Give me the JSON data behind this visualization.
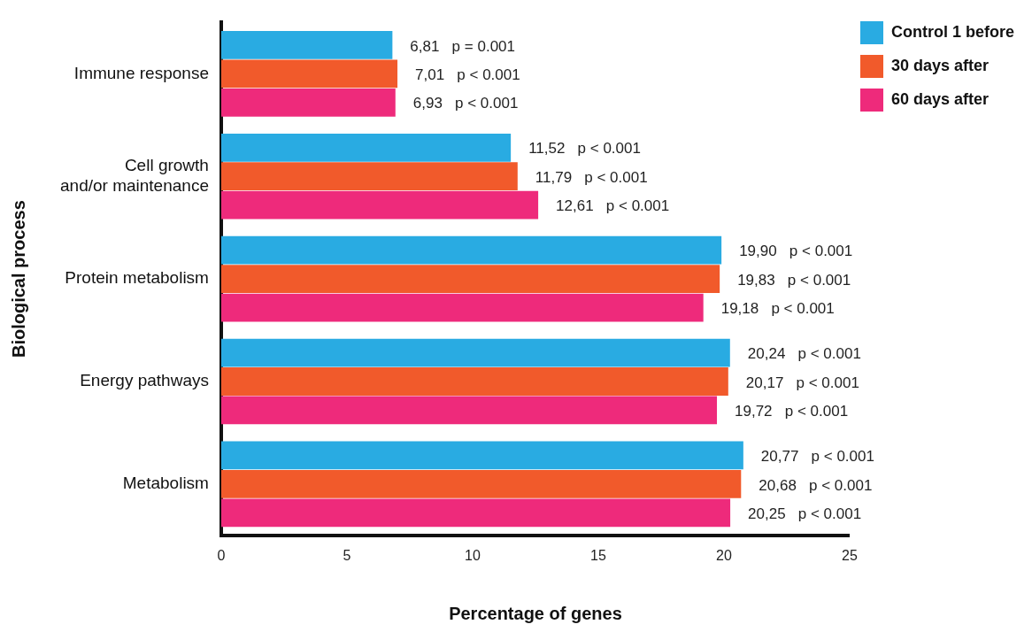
{
  "chart_data": {
    "type": "bar",
    "orientation": "horizontal",
    "xlabel": "Percentage of genes",
    "ylabel": "Biological process",
    "categories": [
      "Immune response",
      "Cell growth\nand/or maintenance",
      "Protein metabolism",
      "Energy pathways",
      "Metabolism"
    ],
    "series": [
      {
        "name": "Control 1 before",
        "color": "#29abe2",
        "values": [
          6.81,
          11.52,
          19.9,
          20.24,
          20.77
        ],
        "value_labels": [
          "6,81   p = 0.001",
          "11,52   p < 0.001",
          "19,90   p < 0.001",
          "20,24   p < 0.001",
          "20,77   p < 0.001"
        ]
      },
      {
        "name": "30 days after",
        "color": "#f15a2b",
        "values": [
          7.01,
          11.79,
          19.83,
          20.17,
          20.68
        ],
        "value_labels": [
          "7,01   p < 0.001",
          "11,79   p < 0.001",
          "19,83   p < 0.001",
          "20,17   p < 0.001",
          "20,68   p < 0.001"
        ]
      },
      {
        "name": "60 days after",
        "color": "#ee2a7b",
        "values": [
          6.93,
          12.61,
          19.18,
          19.72,
          20.25
        ],
        "value_labels": [
          "6,93   p < 0.001",
          "12,61   p < 0.001",
          "19,18   p < 0.001",
          "19,72   p < 0.001",
          "20,25   p < 0.001"
        ]
      }
    ],
    "xlim": [
      0,
      25
    ],
    "xticks": [
      0,
      5,
      10,
      15,
      20,
      25
    ],
    "grid": false,
    "legend": "top right"
  }
}
